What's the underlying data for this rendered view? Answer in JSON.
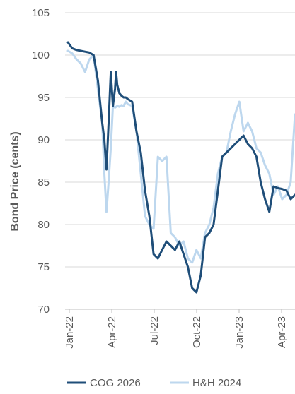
{
  "chart_data": {
    "type": "line",
    "ylabel": "Bond Price (cents)",
    "ylim": [
      70,
      105
    ],
    "yticks": [
      70,
      75,
      80,
      85,
      90,
      95,
      100,
      105
    ],
    "x_tick_labels": [
      "Jan-22",
      "Apr-22",
      "Jul-22",
      "Oct-22",
      "Jan-23",
      "Apr-23"
    ],
    "grid": "horizontal",
    "legend_position": "bottom",
    "series": [
      {
        "name": "COG 2026",
        "color": "#1f4e79",
        "x": [
          0,
          2,
          4,
          6,
          8,
          10,
          12,
          14,
          16,
          17,
          18,
          19,
          20,
          21,
          22,
          22.5,
          23,
          24,
          25,
          26,
          27,
          28,
          30,
          32,
          34,
          36,
          38,
          40,
          42,
          44,
          46,
          48,
          50,
          52,
          54,
          56,
          58,
          60,
          62,
          64,
          66,
          68,
          70,
          72,
          74,
          76,
          78,
          80,
          82,
          84,
          86,
          88,
          90,
          92,
          94,
          96,
          98,
          100,
          102,
          104,
          106
        ],
        "values": [
          101.5,
          100.8,
          100.6,
          100.5,
          100.4,
          100.3,
          100,
          97,
          92,
          90,
          86.5,
          92,
          98,
          94,
          96,
          98,
          96.5,
          95.5,
          95.2,
          95,
          95,
          94.8,
          94.5,
          91,
          88.5,
          84,
          81,
          76.5,
          76,
          77,
          78,
          77.5,
          77,
          78,
          76.5,
          75,
          72.5,
          72,
          74,
          78.5,
          79,
          80,
          84,
          88,
          88.5,
          89,
          89.5,
          90,
          90.5,
          89.5,
          89,
          88,
          85,
          83,
          81.5,
          84.5,
          84.3,
          84.2,
          84,
          83,
          83.5
        ]
      },
      {
        "name": "H&H 2024",
        "color": "#bdd7ee",
        "x": [
          0,
          2,
          4,
          6,
          8,
          10,
          12,
          14,
          16,
          17,
          18,
          19,
          20,
          21,
          22,
          23,
          24,
          25,
          26,
          27,
          28,
          30,
          32,
          34,
          36,
          38,
          40,
          42,
          44,
          46,
          48,
          50,
          52,
          54,
          56,
          58,
          60,
          62,
          64,
          66,
          68,
          70,
          72,
          74,
          76,
          78,
          80,
          82,
          84,
          86,
          88,
          90,
          92,
          94,
          96,
          98,
          100,
          102,
          104,
          106
        ],
        "values": [
          100.5,
          100.2,
          99.5,
          99,
          98,
          99.5,
          100,
          96,
          92,
          86,
          81.5,
          85,
          89,
          94,
          93.8,
          94,
          93.9,
          94.1,
          94,
          94.5,
          94.2,
          94,
          91,
          86,
          81,
          80,
          79.5,
          88,
          87.5,
          88,
          79,
          78.5,
          77.5,
          78,
          76,
          75.5,
          77,
          76,
          79,
          80,
          82,
          86,
          88,
          88.5,
          91,
          93,
          94.5,
          91,
          92,
          91,
          89,
          88.5,
          87,
          86,
          83.5,
          84.5,
          83,
          83.5,
          85,
          93
        ]
      }
    ]
  }
}
